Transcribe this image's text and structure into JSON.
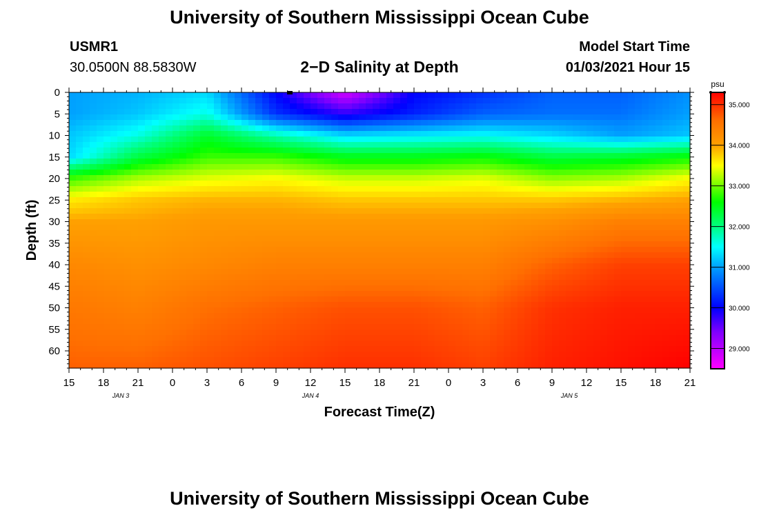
{
  "header": {
    "title": "University of Southern Mississippi Ocean Cube",
    "station_id": "USMR1",
    "station_coords": "30.0500N 88.5830W",
    "plot_title": "2−D Salinity at Depth",
    "start_label": "Model Start Time",
    "start_value": "01/03/2021 Hour 15"
  },
  "footer": {
    "title": "University of Southern Mississippi Ocean Cube"
  },
  "chart_data": {
    "type": "heatmap",
    "title": "2−D Salinity at Depth",
    "xlabel": "Forecast Time(Z)",
    "ylabel": "Depth (ft)",
    "x_ticks": [
      "15",
      "18",
      "21",
      "0",
      "3",
      "6",
      "9",
      "12",
      "15",
      "18",
      "21",
      "0",
      "3",
      "6",
      "9",
      "12",
      "15",
      "18",
      "21"
    ],
    "x_range_hours": [
      0,
      54
    ],
    "day_labels": [
      {
        "label": "JAN 3",
        "hour": 4.5
      },
      {
        "label": "JAN 4",
        "hour": 21
      },
      {
        "label": "JAN 5",
        "hour": 43.5
      }
    ],
    "y_ticks": [
      0,
      5,
      10,
      15,
      20,
      25,
      30,
      35,
      40,
      45,
      50,
      55,
      60
    ],
    "ylim": [
      0,
      64
    ],
    "colorbar": {
      "unit": "psu",
      "min": 28.5,
      "max": 35.3,
      "ticks": [
        "35.000",
        "34.000",
        "33.000",
        "32.000",
        "31.000",
        "30.000",
        "29.000"
      ],
      "tick_values": [
        35,
        34,
        33,
        32,
        31,
        30,
        29
      ],
      "stops": [
        {
          "value": 28.5,
          "color": "#ff00ff"
        },
        {
          "value": 29.4,
          "color": "#8000ff"
        },
        {
          "value": 30.0,
          "color": "#0000ff"
        },
        {
          "value": 31.0,
          "color": "#00a0ff"
        },
        {
          "value": 31.5,
          "color": "#00ffff"
        },
        {
          "value": 32.0,
          "color": "#00ff80"
        },
        {
          "value": 32.6,
          "color": "#00ff00"
        },
        {
          "value": 33.5,
          "color": "#ffff00"
        },
        {
          "value": 34.0,
          "color": "#ffa000"
        },
        {
          "value": 34.6,
          "color": "#ff7000"
        },
        {
          "value": 35.3,
          "color": "#ff0000"
        }
      ]
    },
    "profile_hours": [
      0,
      6,
      12,
      18,
      24,
      30,
      36,
      42,
      48,
      54
    ],
    "profile_depths": [
      0,
      5,
      10,
      15,
      20,
      25,
      30,
      40,
      50,
      64
    ],
    "salinity_grid": [
      [
        31.0,
        31.0,
        31.2,
        31.3,
        32.8,
        33.6,
        34.0,
        34.3,
        34.5,
        34.7
      ],
      [
        31.1,
        31.2,
        31.6,
        32.3,
        33.2,
        33.8,
        34.0,
        34.2,
        34.4,
        34.7
      ],
      [
        31.3,
        31.6,
        32.4,
        32.8,
        33.4,
        33.9,
        34.1,
        34.3,
        34.6,
        34.8
      ],
      [
        30.0,
        30.3,
        31.8,
        32.8,
        33.5,
        33.9,
        34.1,
        34.4,
        34.7,
        34.9
      ],
      [
        28.8,
        29.8,
        31.3,
        32.5,
        33.3,
        33.8,
        34.1,
        34.4,
        34.8,
        35.0
      ],
      [
        30.0,
        30.2,
        31.4,
        32.5,
        33.3,
        33.8,
        34.1,
        34.4,
        34.8,
        35.0
      ],
      [
        30.3,
        30.6,
        31.5,
        32.6,
        33.4,
        33.8,
        34.1,
        34.4,
        34.7,
        34.9
      ],
      [
        30.6,
        30.7,
        31.3,
        32.3,
        33.1,
        33.8,
        34.2,
        34.7,
        35.0,
        35.1
      ],
      [
        30.6,
        30.7,
        31.0,
        32.4,
        33.2,
        33.9,
        34.4,
        34.9,
        35.1,
        35.2
      ],
      [
        30.9,
        31.0,
        31.2,
        32.6,
        33.5,
        34.0,
        34.4,
        34.9,
        35.1,
        35.3
      ]
    ]
  }
}
